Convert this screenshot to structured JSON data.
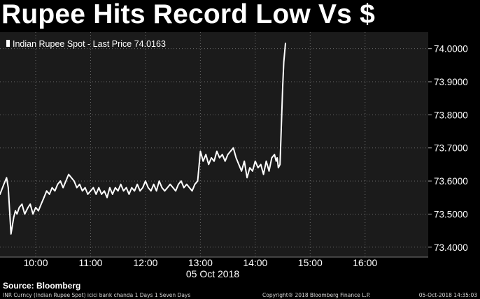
{
  "title": "Rupee Hits Record Low Vs $",
  "legend": {
    "label": "Indian Rupee Spot - Last Price 74.0163",
    "marker_color": "#ffffff"
  },
  "source_label": "Source: Bloomberg",
  "footer": {
    "left": "INR Curncy (Indian Rupee Spot) icici bank chanda 1 Days 1 Seven Days",
    "center": "Copyright® 2018 Bloomberg Finance L.P.",
    "right": "05-Oct-2018 14:35:03"
  },
  "colors": {
    "background": "#000000",
    "plot_background": "#1b1b1b",
    "line": "#ffffff",
    "grid": "#6a6a6a",
    "axis_text": "#ffffff"
  },
  "chart_data": {
    "type": "line",
    "title": "Rupee Hits Record Low Vs $",
    "xlabel": "05 Oct 2018",
    "ylabel": "",
    "x_ticks": [
      "10:00",
      "11:00",
      "12:00",
      "13:00",
      "14:00",
      "15:00",
      "16:00"
    ],
    "y_ticks": [
      "73.4000",
      "73.5000",
      "73.6000",
      "73.7000",
      "73.8000",
      "73.9000",
      "74.0000"
    ],
    "ylim": [
      73.37,
      74.05
    ],
    "xlim_hours": [
      9.35,
      17.15
    ],
    "grid": "dotted",
    "legend_position": "top-left",
    "series": [
      {
        "name": "Indian Rupee Spot - Last Price",
        "last_value": 74.0163,
        "x": [
          9.35,
          9.42,
          9.47,
          9.5,
          9.55,
          9.6,
          9.63,
          9.66,
          9.7,
          9.75,
          9.8,
          9.86,
          9.9,
          9.95,
          10.0,
          10.05,
          10.1,
          10.15,
          10.2,
          10.25,
          10.3,
          10.35,
          10.4,
          10.45,
          10.5,
          10.55,
          10.6,
          10.65,
          10.7,
          10.75,
          10.8,
          10.85,
          10.9,
          10.95,
          11.0,
          11.05,
          11.1,
          11.15,
          11.2,
          11.25,
          11.3,
          11.35,
          11.4,
          11.45,
          11.5,
          11.55,
          11.6,
          11.65,
          11.7,
          11.75,
          11.8,
          11.85,
          11.9,
          11.95,
          12.0,
          12.05,
          12.1,
          12.15,
          12.2,
          12.25,
          12.3,
          12.35,
          12.4,
          12.45,
          12.5,
          12.55,
          12.6,
          12.65,
          12.7,
          12.75,
          12.8,
          12.85,
          12.9,
          12.95,
          13.0,
          13.05,
          13.1,
          13.15,
          13.2,
          13.25,
          13.3,
          13.35,
          13.4,
          13.45,
          13.5,
          13.55,
          13.6,
          13.65,
          13.7,
          13.75,
          13.8,
          13.85,
          13.9,
          13.95,
          14.0,
          14.05,
          14.1,
          14.15,
          14.2,
          14.25,
          14.3,
          14.35,
          14.38,
          14.4,
          14.42,
          14.45,
          14.5,
          14.52,
          14.55
        ],
        "y": [
          73.56,
          73.59,
          73.61,
          73.58,
          73.44,
          73.49,
          73.51,
          73.5,
          73.52,
          73.53,
          73.5,
          73.52,
          73.53,
          73.5,
          73.52,
          73.51,
          73.53,
          73.55,
          73.57,
          73.56,
          73.58,
          73.57,
          73.59,
          73.6,
          73.58,
          73.6,
          73.62,
          73.61,
          73.6,
          73.58,
          73.59,
          73.57,
          73.58,
          73.56,
          73.57,
          73.58,
          73.56,
          73.58,
          73.56,
          73.57,
          73.55,
          73.58,
          73.56,
          73.58,
          73.57,
          73.59,
          73.57,
          73.58,
          73.56,
          73.58,
          73.57,
          73.59,
          73.57,
          73.58,
          73.6,
          73.58,
          73.57,
          73.59,
          73.57,
          73.6,
          73.58,
          73.57,
          73.58,
          73.59,
          73.58,
          73.57,
          73.59,
          73.6,
          73.58,
          73.59,
          73.58,
          73.57,
          73.59,
          73.6,
          73.69,
          73.66,
          73.68,
          73.65,
          73.67,
          73.66,
          73.69,
          73.67,
          73.68,
          73.66,
          73.68,
          73.69,
          73.7,
          73.67,
          73.65,
          73.63,
          73.66,
          73.61,
          73.64,
          73.63,
          73.66,
          73.64,
          73.65,
          73.62,
          73.66,
          73.63,
          73.67,
          73.68,
          73.66,
          73.67,
          73.64,
          73.65,
          73.89,
          73.96,
          74.0163
        ]
      }
    ]
  }
}
